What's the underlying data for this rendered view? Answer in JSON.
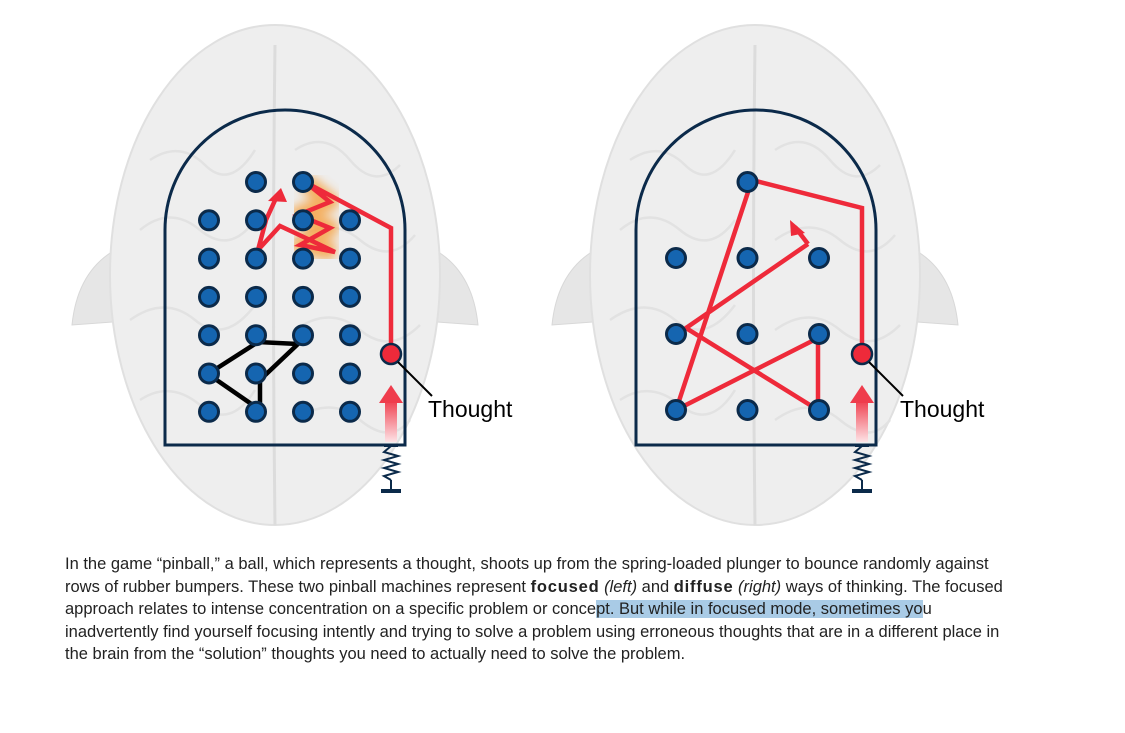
{
  "figure": {
    "left_machine": {
      "mode": "focused",
      "label": "Thought",
      "bumpers": [
        {
          "row": 0,
          "col": 1
        },
        {
          "row": 0,
          "col": 2
        },
        {
          "row": 1,
          "col": 0
        },
        {
          "row": 1,
          "col": 1
        },
        {
          "row": 1,
          "col": 2
        },
        {
          "row": 1,
          "col": 3
        },
        {
          "row": 2,
          "col": 0
        },
        {
          "row": 2,
          "col": 1
        },
        {
          "row": 2,
          "col": 2
        },
        {
          "row": 2,
          "col": 3
        },
        {
          "row": 3,
          "col": 0
        },
        {
          "row": 3,
          "col": 1
        },
        {
          "row": 3,
          "col": 2
        },
        {
          "row": 3,
          "col": 3
        },
        {
          "row": 4,
          "col": 0
        },
        {
          "row": 4,
          "col": 1
        },
        {
          "row": 4,
          "col": 2
        },
        {
          "row": 4,
          "col": 3
        },
        {
          "row": 5,
          "col": 0
        },
        {
          "row": 5,
          "col": 1
        },
        {
          "row": 5,
          "col": 2
        },
        {
          "row": 5,
          "col": 3
        },
        {
          "row": 6,
          "col": 0
        },
        {
          "row": 6,
          "col": 1
        },
        {
          "row": 6,
          "col": 2
        },
        {
          "row": 6,
          "col": 3
        }
      ]
    },
    "right_machine": {
      "mode": "diffuse",
      "label": "Thought",
      "bumpers": [
        {
          "row": 0,
          "col": 1
        },
        {
          "row": 1,
          "col": 0
        },
        {
          "row": 1,
          "col": 1
        },
        {
          "row": 1,
          "col": 2
        },
        {
          "row": 2,
          "col": 0
        },
        {
          "row": 2,
          "col": 1
        },
        {
          "row": 2,
          "col": 2
        },
        {
          "row": 3,
          "col": 0
        },
        {
          "row": 3,
          "col": 1
        },
        {
          "row": 3,
          "col": 2
        }
      ]
    },
    "colors": {
      "bumper_fill": "#1565b0",
      "bumper_stroke": "#0b2a4a",
      "frame": "#0b2a4a",
      "path": "#ee2a3a",
      "glow": "#f6a03c",
      "erroneous_path": "#000000",
      "brain": "#eeeeee"
    }
  },
  "caption": {
    "part1": "In the game “pinball,” a ball, which represents a thought, shoots up from the spring-loaded plunger to bounce randomly against rows of rubber bumpers. These two pinball machines represent ",
    "focused": "focused",
    "left": "(left)",
    "and": " and ",
    "diffuse": "diffuse",
    "right": "(right)",
    "part2": " ways of thinking. The focused approach relates to intense concentration on a specific problem or conce",
    "highlighted": "pt. But while in focused mode, sometimes yo",
    "part3": "u inadvertently find yourself focusing intently and trying to solve a problem using erroneous thoughts that are in a different place in the brain from the “solution” thoughts you need to actually need to solve the problem."
  }
}
